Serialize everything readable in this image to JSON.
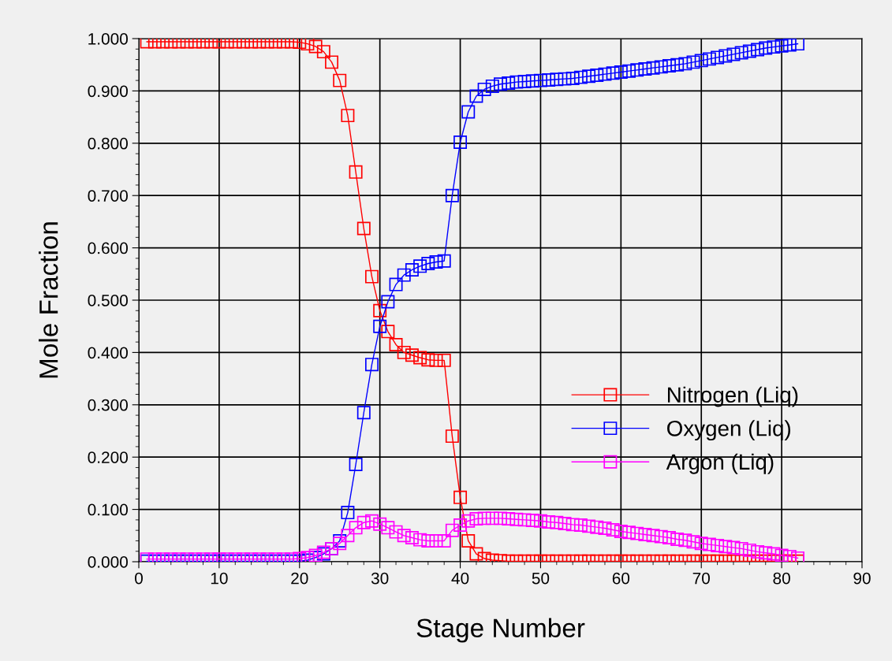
{
  "chart_data": {
    "type": "line",
    "xlabel": "Stage Number",
    "ylabel": "Mole Fraction",
    "x": [
      1,
      2,
      3,
      4,
      5,
      6,
      7,
      8,
      9,
      10,
      11,
      12,
      13,
      14,
      15,
      16,
      17,
      18,
      19,
      20,
      21,
      22,
      23,
      24,
      25,
      26,
      27,
      28,
      29,
      30,
      31,
      32,
      33,
      34,
      35,
      36,
      37,
      38,
      39,
      40,
      41,
      42,
      43,
      44,
      45,
      46,
      47,
      48,
      49,
      50,
      51,
      52,
      53,
      54,
      55,
      56,
      57,
      58,
      59,
      60,
      61,
      62,
      63,
      64,
      65,
      66,
      67,
      68,
      69,
      70,
      71,
      72,
      73,
      74,
      75,
      76,
      77,
      78,
      79,
      80,
      81,
      82
    ],
    "series": [
      {
        "name": "Nitrogen (Liq)",
        "color": "#ff0000",
        "values": [
          0.994,
          0.994,
          0.994,
          0.994,
          0.994,
          0.994,
          0.994,
          0.994,
          0.994,
          0.994,
          0.994,
          0.994,
          0.994,
          0.994,
          0.994,
          0.994,
          0.994,
          0.994,
          0.994,
          0.993,
          0.99,
          0.985,
          0.975,
          0.955,
          0.92,
          0.853,
          0.745,
          0.637,
          0.545,
          0.48,
          0.44,
          0.415,
          0.4,
          0.395,
          0.39,
          0.386,
          0.385,
          0.385,
          0.24,
          0.123,
          0.04,
          0.015,
          0.006,
          0.003,
          0.002,
          0.001,
          0.001,
          0.001,
          0.001,
          0.001,
          0.001,
          0.001,
          0.001,
          0.001,
          0.001,
          0.001,
          0.001,
          0.001,
          0.001,
          0.001,
          0.001,
          0.001,
          0.001,
          0.001,
          0.001,
          0.001,
          0.001,
          0.001,
          0.001,
          0.001,
          0.001,
          0.001,
          0.001,
          0.001,
          0.001,
          0.001,
          0.001,
          0.001,
          0.001,
          0.001,
          0.001,
          0.001
        ]
      },
      {
        "name": "Oxygen (Liq)",
        "color": "#0000ff",
        "values": [
          0.001,
          0.001,
          0.001,
          0.001,
          0.001,
          0.001,
          0.001,
          0.001,
          0.001,
          0.001,
          0.001,
          0.001,
          0.001,
          0.001,
          0.001,
          0.001,
          0.001,
          0.001,
          0.001,
          0.001,
          0.003,
          0.008,
          0.015,
          0.025,
          0.04,
          0.094,
          0.186,
          0.285,
          0.377,
          0.45,
          0.497,
          0.53,
          0.548,
          0.558,
          0.565,
          0.57,
          0.573,
          0.575,
          0.7,
          0.802,
          0.86,
          0.89,
          0.903,
          0.909,
          0.913,
          0.915,
          0.917,
          0.918,
          0.919,
          0.92,
          0.921,
          0.922,
          0.923,
          0.924,
          0.926,
          0.928,
          0.93,
          0.932,
          0.934,
          0.936,
          0.938,
          0.94,
          0.942,
          0.944,
          0.946,
          0.948,
          0.95,
          0.952,
          0.955,
          0.958,
          0.961,
          0.964,
          0.967,
          0.97,
          0.973,
          0.976,
          0.979,
          0.982,
          0.984,
          0.986,
          0.988,
          0.99
        ]
      },
      {
        "name": "Argon (Liq)",
        "color": "#ff00ff",
        "values": [
          0.005,
          0.005,
          0.005,
          0.005,
          0.005,
          0.005,
          0.005,
          0.005,
          0.005,
          0.005,
          0.005,
          0.005,
          0.005,
          0.005,
          0.005,
          0.005,
          0.005,
          0.005,
          0.005,
          0.006,
          0.008,
          0.012,
          0.018,
          0.025,
          0.035,
          0.05,
          0.065,
          0.075,
          0.078,
          0.072,
          0.065,
          0.057,
          0.05,
          0.046,
          0.042,
          0.04,
          0.04,
          0.04,
          0.06,
          0.07,
          0.078,
          0.082,
          0.083,
          0.083,
          0.083,
          0.082,
          0.081,
          0.08,
          0.079,
          0.078,
          0.076,
          0.075,
          0.073,
          0.071,
          0.07,
          0.068,
          0.066,
          0.064,
          0.061,
          0.058,
          0.056,
          0.054,
          0.052,
          0.05,
          0.048,
          0.046,
          0.043,
          0.041,
          0.038,
          0.035,
          0.033,
          0.031,
          0.029,
          0.027,
          0.025,
          0.022,
          0.019,
          0.017,
          0.015,
          0.012,
          0.01,
          0.007
        ]
      }
    ],
    "xlim": [
      0,
      90
    ],
    "xticks": [
      0,
      10,
      20,
      30,
      40,
      50,
      60,
      70,
      80,
      90
    ],
    "ylim": [
      0,
      1
    ],
    "yticks": [
      {
        "value": 0,
        "label": "0.000"
      },
      {
        "value": 0.1,
        "label": "0.100"
      },
      {
        "value": 0.2,
        "label": "0.200"
      },
      {
        "value": 0.3,
        "label": "0.300"
      },
      {
        "value": 0.4,
        "label": "0.400"
      },
      {
        "value": 0.5,
        "label": "0.500"
      },
      {
        "value": 0.6,
        "label": "0.600"
      },
      {
        "value": 0.7,
        "label": "0.700"
      },
      {
        "value": 0.8,
        "label": "0.800"
      },
      {
        "value": 0.9,
        "label": "0.900"
      },
      {
        "value": 1,
        "label": "1.000"
      }
    ],
    "grid": true,
    "legend": "lower right",
    "marker": "square",
    "line_style": "solid"
  }
}
